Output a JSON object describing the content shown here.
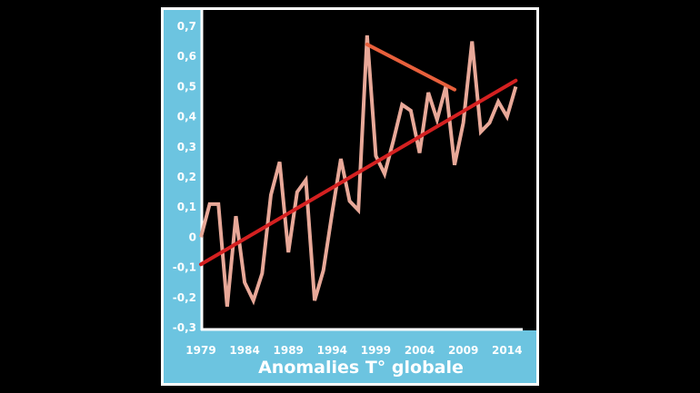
{
  "chart_data": {
    "type": "line",
    "title": "Anomalies T° globale",
    "xlim": [
      1979,
      2016
    ],
    "ylim": [
      -0.3,
      0.7
    ],
    "x_tick_labels": [
      "1979",
      "1984",
      "1989",
      "1994",
      "1999",
      "2004",
      "2009",
      "2014"
    ],
    "x_tick_values": [
      1979,
      1984,
      1989,
      1994,
      1999,
      2004,
      2009,
      2014
    ],
    "y_tick_labels": [
      "0,7",
      "0,6",
      "0,5",
      "0,4",
      "0,3",
      "0,2",
      "0,1",
      "0",
      "-0,1",
      "-0,2",
      "-0,3"
    ],
    "y_tick_values": [
      0.7,
      0.6,
      0.5,
      0.4,
      0.3,
      0.2,
      0.1,
      0,
      -0.1,
      -0.2,
      -0.3
    ],
    "series": [
      {
        "color": "#e8a898",
        "x": [
          1979,
          1980,
          1981,
          1982,
          1983,
          1984,
          1985,
          1986,
          1987,
          1988,
          1989,
          1990,
          1991,
          1992,
          1993,
          1994,
          1995,
          1996,
          1997,
          1998,
          1999,
          2000,
          2001,
          2002,
          2003,
          2004,
          2005,
          2006,
          2007,
          2008,
          2009,
          2010,
          2011,
          2012,
          2013,
          2014,
          2015
        ],
        "values": [
          0.0,
          0.11,
          0.11,
          -0.23,
          0.07,
          -0.15,
          -0.21,
          -0.12,
          0.14,
          0.25,
          -0.05,
          0.15,
          0.19,
          -0.21,
          -0.11,
          0.08,
          0.26,
          0.12,
          0.09,
          0.67,
          0.27,
          0.21,
          0.32,
          0.44,
          0.42,
          0.28,
          0.48,
          0.39,
          0.5,
          0.24,
          0.38,
          0.65,
          0.35,
          0.38,
          0.45,
          0.4,
          0.5
        ]
      }
    ],
    "trend_line": {
      "color": "#d42020",
      "x": [
        1979,
        2015
      ],
      "values": [
        -0.09,
        0.52
      ]
    },
    "pause_line": {
      "color": "#e8603c",
      "x": [
        1998,
        2008
      ],
      "values": [
        0.64,
        0.49
      ]
    },
    "colors": {
      "axis_band": "#6cc4e0",
      "frame": "#ffffff",
      "background": "#000000",
      "text": "#ffffff"
    }
  }
}
